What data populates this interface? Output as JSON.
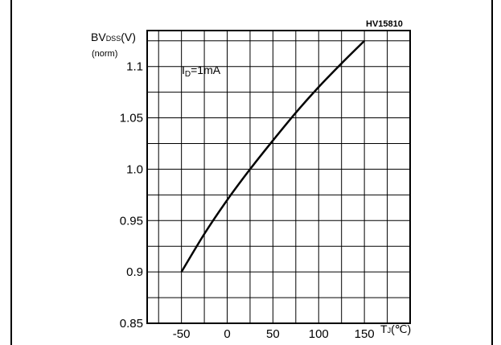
{
  "figure_code": "HV15810",
  "annotation": "I<sub>D</sub>=1mA",
  "annotation_main": "I",
  "annotation_sub": "D",
  "annotation_rest": "=1mA",
  "ylabel_main": "BV",
  "ylabel_sub": "DSS",
  "ylabel_unit": "(V)",
  "ylabel_norm": "(norm)",
  "xlabel_main": "T",
  "xlabel_sub": "J",
  "xlabel_unit": "(℃)",
  "chart_data": {
    "type": "line",
    "title": "",
    "xlabel": "TJ(℃)",
    "ylabel": "BVDSS(V) (norm)",
    "xlim": [
      -87.5,
      200
    ],
    "ylim": [
      0.85,
      1.135
    ],
    "x_ticks": [
      -50,
      0,
      50,
      100,
      150
    ],
    "x_tick_labels": [
      "-50",
      "0",
      "50",
      "100",
      "150"
    ],
    "y_ticks": [
      0.85,
      0.9,
      0.95,
      1.0,
      1.05,
      1.1
    ],
    "y_tick_labels": [
      "0.85",
      "0.9",
      "0.95",
      "1.0",
      "1.05",
      "1.1"
    ],
    "grid": true,
    "series": [
      {
        "x": [
          -50,
          -25,
          0,
          25,
          50,
          75,
          100,
          125,
          150
        ],
        "y": [
          0.9,
          0.937,
          0.97,
          1.0,
          1.028,
          1.055,
          1.08,
          1.103,
          1.125
        ]
      }
    ]
  }
}
